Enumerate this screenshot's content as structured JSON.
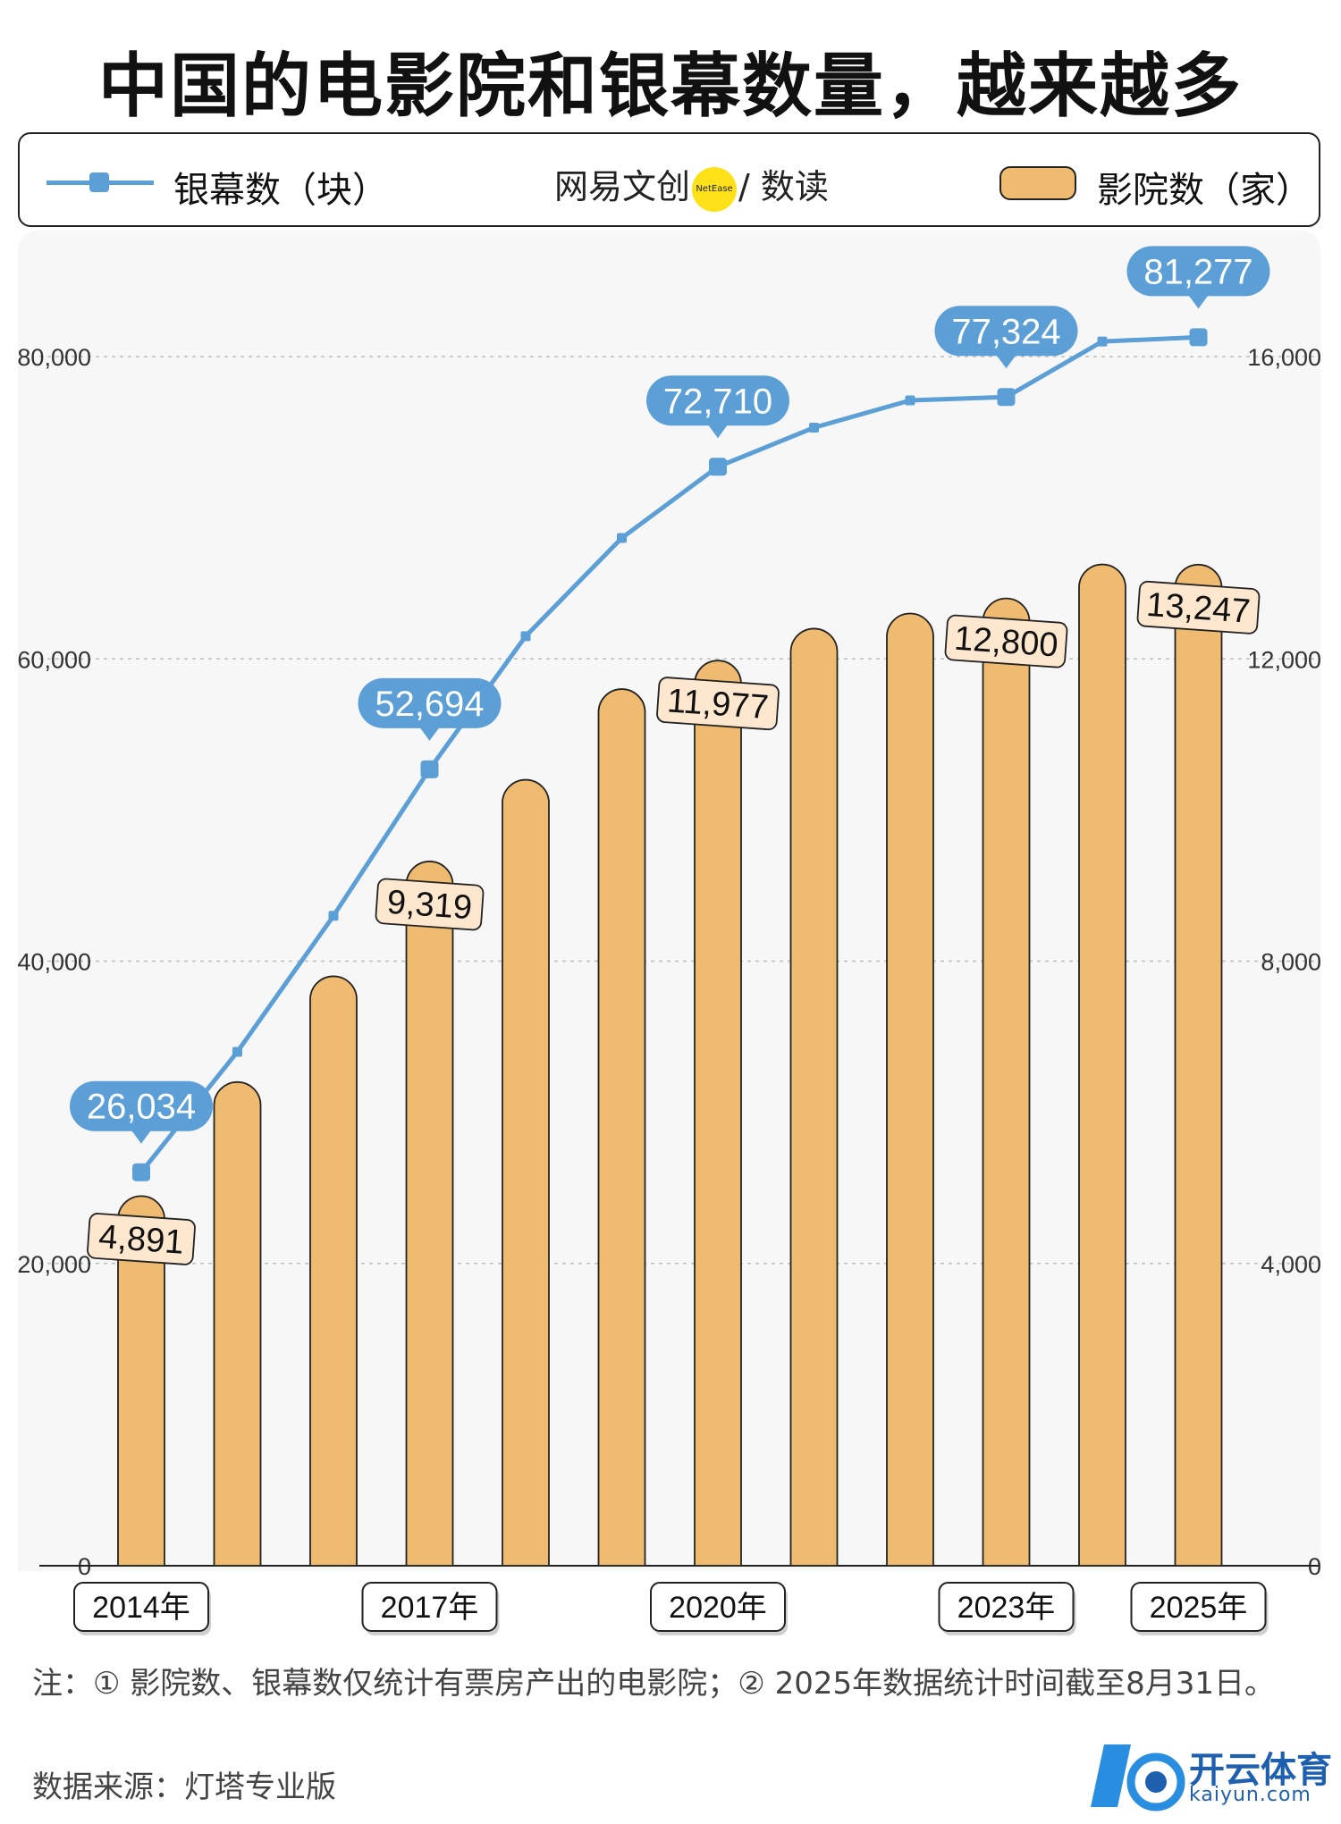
{
  "title": "中国的电影院和银幕数量，越来越多",
  "legend": {
    "line_label": "银幕数（块）",
    "bar_label": "影院数（家）",
    "logo_left": "网易文创",
    "logo_dot": "NetEase",
    "logo_right": "/ 数读"
  },
  "colors": {
    "line": "#5b9fd6",
    "bar": "#efbb70",
    "bar_label_bg": "#fde7cf",
    "panel": "#f7f7f7"
  },
  "chart_data": {
    "type": "bar+line",
    "categories": [
      "2014",
      "2015",
      "2016",
      "2017",
      "2018",
      "2019",
      "2020",
      "2021",
      "2022",
      "2023",
      "2024",
      "2025"
    ],
    "x_tick_labels": [
      {
        "category": "2014",
        "label": "2014年"
      },
      {
        "category": "2017",
        "label": "2017年"
      },
      {
        "category": "2020",
        "label": "2020年"
      },
      {
        "category": "2023",
        "label": "2023年"
      },
      {
        "category": "2025",
        "label": "2025年"
      }
    ],
    "series": [
      {
        "name": "银幕数（块）",
        "type": "line",
        "axis": "left",
        "values": [
          26034,
          34000,
          43000,
          52694,
          61500,
          68000,
          72710,
          75300,
          77100,
          77324,
          81000,
          81277
        ],
        "labeled": {
          "2014": "26,034",
          "2017": "52,694",
          "2020": "72,710",
          "2023": "77,324",
          "2025": "81,277"
        }
      },
      {
        "name": "影院数（家）",
        "type": "bar",
        "axis": "right",
        "values": [
          4891,
          6400,
          7800,
          9319,
          10400,
          11600,
          11977,
          12400,
          12600,
          12800,
          13250,
          13247
        ],
        "labeled": {
          "2014": "4,891",
          "2017": "9,319",
          "2020": "11,977",
          "2023": "12,800",
          "2025": "13,247"
        }
      }
    ],
    "y_left": {
      "ticks": [
        0,
        20000,
        40000,
        60000,
        80000
      ],
      "tick_labels": [
        "0",
        "20,000",
        "40,000",
        "60,000",
        "80,000"
      ],
      "ylim": [
        0,
        80000
      ]
    },
    "y_right": {
      "ticks": [
        0,
        4000,
        8000,
        12000,
        16000
      ],
      "tick_labels": [
        "0",
        "4,000",
        "8,000",
        "12,000",
        "16,000"
      ],
      "ylim": [
        0,
        16000
      ]
    },
    "grid": true,
    "legend": "top"
  },
  "note": "注：① 影院数、银幕数仅统计有票房产出的电影院；② 2025年数据统计时间截至8月31日。",
  "source": "数据来源：灯塔专业版",
  "watermark": {
    "name": "开云体育",
    "sub": "kaiyun.com"
  }
}
